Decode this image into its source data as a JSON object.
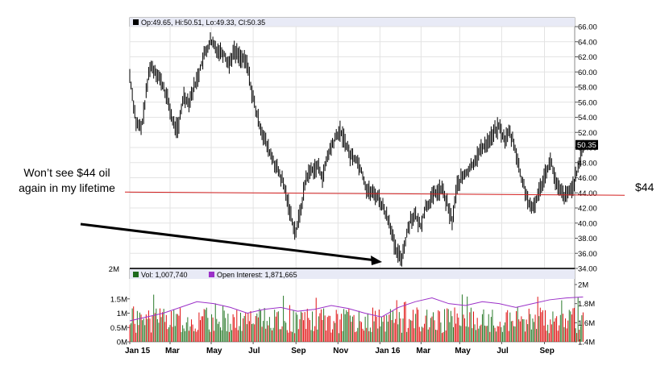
{
  "chart_data": {
    "type": "candlestick",
    "price_panel": {
      "legend_text": "Op:49.65, Hi:50.51, Lo:49.33, Cl:50.35",
      "ylim": [
        34.0,
        66.0
      ],
      "y_ticks": [
        "66.00",
        "64.00",
        "62.00",
        "60.00",
        "58.00",
        "56.00",
        "54.00",
        "52.00",
        "50.00",
        "48.00",
        "46.00",
        "44.00",
        "42.00",
        "40.00",
        "38.00",
        "36.00",
        "34.00"
      ],
      "last_price_label": "50.35",
      "path_points": [
        [
          0,
          59.5
        ],
        [
          8,
          53
        ],
        [
          14,
          52.5
        ],
        [
          24,
          60.8
        ],
        [
          32,
          60
        ],
        [
          40,
          58
        ],
        [
          46,
          56
        ],
        [
          52,
          53
        ],
        [
          58,
          52.5
        ],
        [
          64,
          57
        ],
        [
          70,
          56
        ],
        [
          80,
          59
        ],
        [
          88,
          62
        ],
        [
          96,
          64
        ],
        [
          104,
          63
        ],
        [
          112,
          62.5
        ],
        [
          118,
          61
        ],
        [
          124,
          62.8
        ],
        [
          132,
          62
        ],
        [
          140,
          61
        ],
        [
          146,
          57
        ],
        [
          152,
          54
        ],
        [
          158,
          52
        ],
        [
          164,
          50
        ],
        [
          170,
          48.5
        ],
        [
          176,
          47
        ],
        [
          182,
          45.5
        ],
        [
          188,
          43
        ],
        [
          194,
          40
        ],
        [
          198,
          38.8
        ],
        [
          204,
          42
        ],
        [
          210,
          46
        ],
        [
          216,
          47
        ],
        [
          224,
          47.5
        ],
        [
          230,
          46
        ],
        [
          236,
          49
        ],
        [
          244,
          51
        ],
        [
          250,
          52.2
        ],
        [
          256,
          51
        ],
        [
          262,
          49
        ],
        [
          270,
          48.5
        ],
        [
          276,
          47
        ],
        [
          282,
          44.5
        ],
        [
          288,
          44
        ],
        [
          296,
          43.5
        ],
        [
          302,
          42
        ],
        [
          310,
          40
        ],
        [
          316,
          36.5
        ],
        [
          320,
          35.8
        ],
        [
          324,
          35.5
        ],
        [
          328,
          37.5
        ],
        [
          334,
          40.5
        ],
        [
          340,
          41
        ],
        [
          346,
          39.5
        ],
        [
          352,
          42
        ],
        [
          358,
          43
        ],
        [
          364,
          44
        ],
        [
          372,
          44.5
        ],
        [
          378,
          42.5
        ],
        [
          384,
          40.2
        ],
        [
          390,
          45
        ],
        [
          396,
          46
        ],
        [
          404,
          47
        ],
        [
          412,
          48.5
        ],
        [
          420,
          50
        ],
        [
          428,
          51
        ],
        [
          436,
          52.3
        ],
        [
          440,
          52.8
        ],
        [
          446,
          51
        ],
        [
          452,
          52
        ],
        [
          458,
          50.5
        ],
        [
          466,
          46
        ],
        [
          472,
          44
        ],
        [
          478,
          41.5
        ],
        [
          484,
          43
        ],
        [
          490,
          45
        ],
        [
          496,
          47
        ],
        [
          502,
          48.2
        ],
        [
          508,
          45
        ],
        [
          514,
          44
        ],
        [
          520,
          43.5
        ],
        [
          528,
          45
        ],
        [
          534,
          47
        ],
        [
          540,
          50.35
        ]
      ],
      "reference_line": {
        "value": 44,
        "label": "$44"
      }
    },
    "volume_panel": {
      "legend": [
        {
          "name": "Vol: 1,007,740",
          "color": "#1f6b1f"
        },
        {
          "name": "Open Interest: 1,871,665",
          "color": "#9b30c8"
        }
      ],
      "left_ticks": [
        "2M",
        "1.5M",
        "1M",
        "0.5M",
        "0M"
      ],
      "left_range": [
        0,
        2000000
      ],
      "right_ticks": [
        "2M",
        "1.8M",
        "1.6M",
        "1.4M"
      ],
      "right_range": [
        1400000,
        2000000
      ],
      "open_interest": [
        [
          0,
          1.62
        ],
        [
          40,
          1.7
        ],
        [
          60,
          1.76
        ],
        [
          80,
          1.82
        ],
        [
          100,
          1.8
        ],
        [
          120,
          1.76
        ],
        [
          140,
          1.7
        ],
        [
          160,
          1.74
        ],
        [
          180,
          1.76
        ],
        [
          200,
          1.72
        ],
        [
          220,
          1.74
        ],
        [
          240,
          1.78
        ],
        [
          260,
          1.75
        ],
        [
          280,
          1.7
        ],
        [
          300,
          1.66
        ],
        [
          320,
          1.76
        ],
        [
          340,
          1.82
        ],
        [
          360,
          1.86
        ],
        [
          380,
          1.8
        ],
        [
          400,
          1.78
        ],
        [
          420,
          1.82
        ],
        [
          440,
          1.8
        ],
        [
          460,
          1.76
        ],
        [
          480,
          1.8
        ],
        [
          500,
          1.84
        ],
        [
          520,
          1.86
        ],
        [
          540,
          1.87
        ]
      ]
    },
    "x_ticks": [
      {
        "label": "Jan 15",
        "pos": 0
      },
      {
        "label": "Mar",
        "pos": 48
      },
      {
        "label": "May",
        "pos": 97
      },
      {
        "label": "Jul",
        "pos": 147
      },
      {
        "label": "Sep",
        "pos": 198
      },
      {
        "label": "Nov",
        "pos": 248
      },
      {
        "label": "Jan 16",
        "pos": 298
      },
      {
        "label": "Mar",
        "pos": 347
      },
      {
        "label": "May",
        "pos": 393
      },
      {
        "label": "Jul",
        "pos": 443
      },
      {
        "label": "Sep",
        "pos": 494
      }
    ],
    "x_range": [
      0,
      530
    ],
    "grid": true
  },
  "annotations": {
    "note": "Won’t see $44 oil again in my lifetime",
    "level_label": "$44"
  }
}
